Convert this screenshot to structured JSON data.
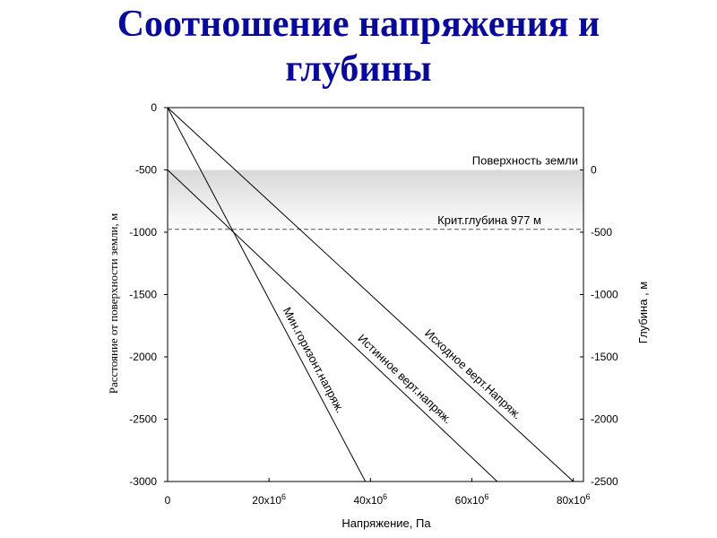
{
  "title_lines": [
    "Соотношение напряжения и",
    "глубины"
  ],
  "chart_data": {
    "type": "line",
    "xlabel": "Напряжение, Па",
    "ylabel": "Расстояние от поверхности земли, м",
    "y2label": "Глубина , м",
    "xlim": [
      0,
      82
    ],
    "ylim": [
      -3000,
      0
    ],
    "x_ticks": [
      {
        "value": 0,
        "label": "0"
      },
      {
        "value": 20,
        "label": "20x10",
        "sup": "6"
      },
      {
        "value": 40,
        "label": "40x10",
        "sup": "6"
      },
      {
        "value": 60,
        "label": "60x10",
        "sup": "6"
      },
      {
        "value": 80,
        "label": "80x10",
        "sup": "6"
      }
    ],
    "y_ticks": [
      0,
      -500,
      -1000,
      -1500,
      -2000,
      -2500,
      -3000
    ],
    "y2_ticks": [
      {
        "at": -500,
        "label": "0"
      },
      {
        "at": -1000,
        "label": "-500"
      },
      {
        "at": -1500,
        "label": "-1000"
      },
      {
        "at": -2000,
        "label": "-1500"
      },
      {
        "at": -2500,
        "label": "-2000"
      },
      {
        "at": -3000,
        "label": "-2500"
      }
    ],
    "shaded_band": {
      "from": -500,
      "to": -1000
    },
    "surface": {
      "depth": -500,
      "label": "Поверхность земли"
    },
    "critical": {
      "depth": -977,
      "label": "Крит.глубина 977 м"
    },
    "series": [
      {
        "name": "Исходное верт.Напряж.",
        "points": [
          [
            0,
            0
          ],
          [
            80,
            -3000
          ]
        ]
      },
      {
        "name": "Истинное верт.напряж.",
        "points": [
          [
            0,
            -500
          ],
          [
            65,
            -3000
          ]
        ]
      },
      {
        "name": "Мин.горизонт.напряж.",
        "points": [
          [
            0,
            0
          ],
          [
            39,
            -3000
          ]
        ]
      }
    ],
    "grid": false
  }
}
